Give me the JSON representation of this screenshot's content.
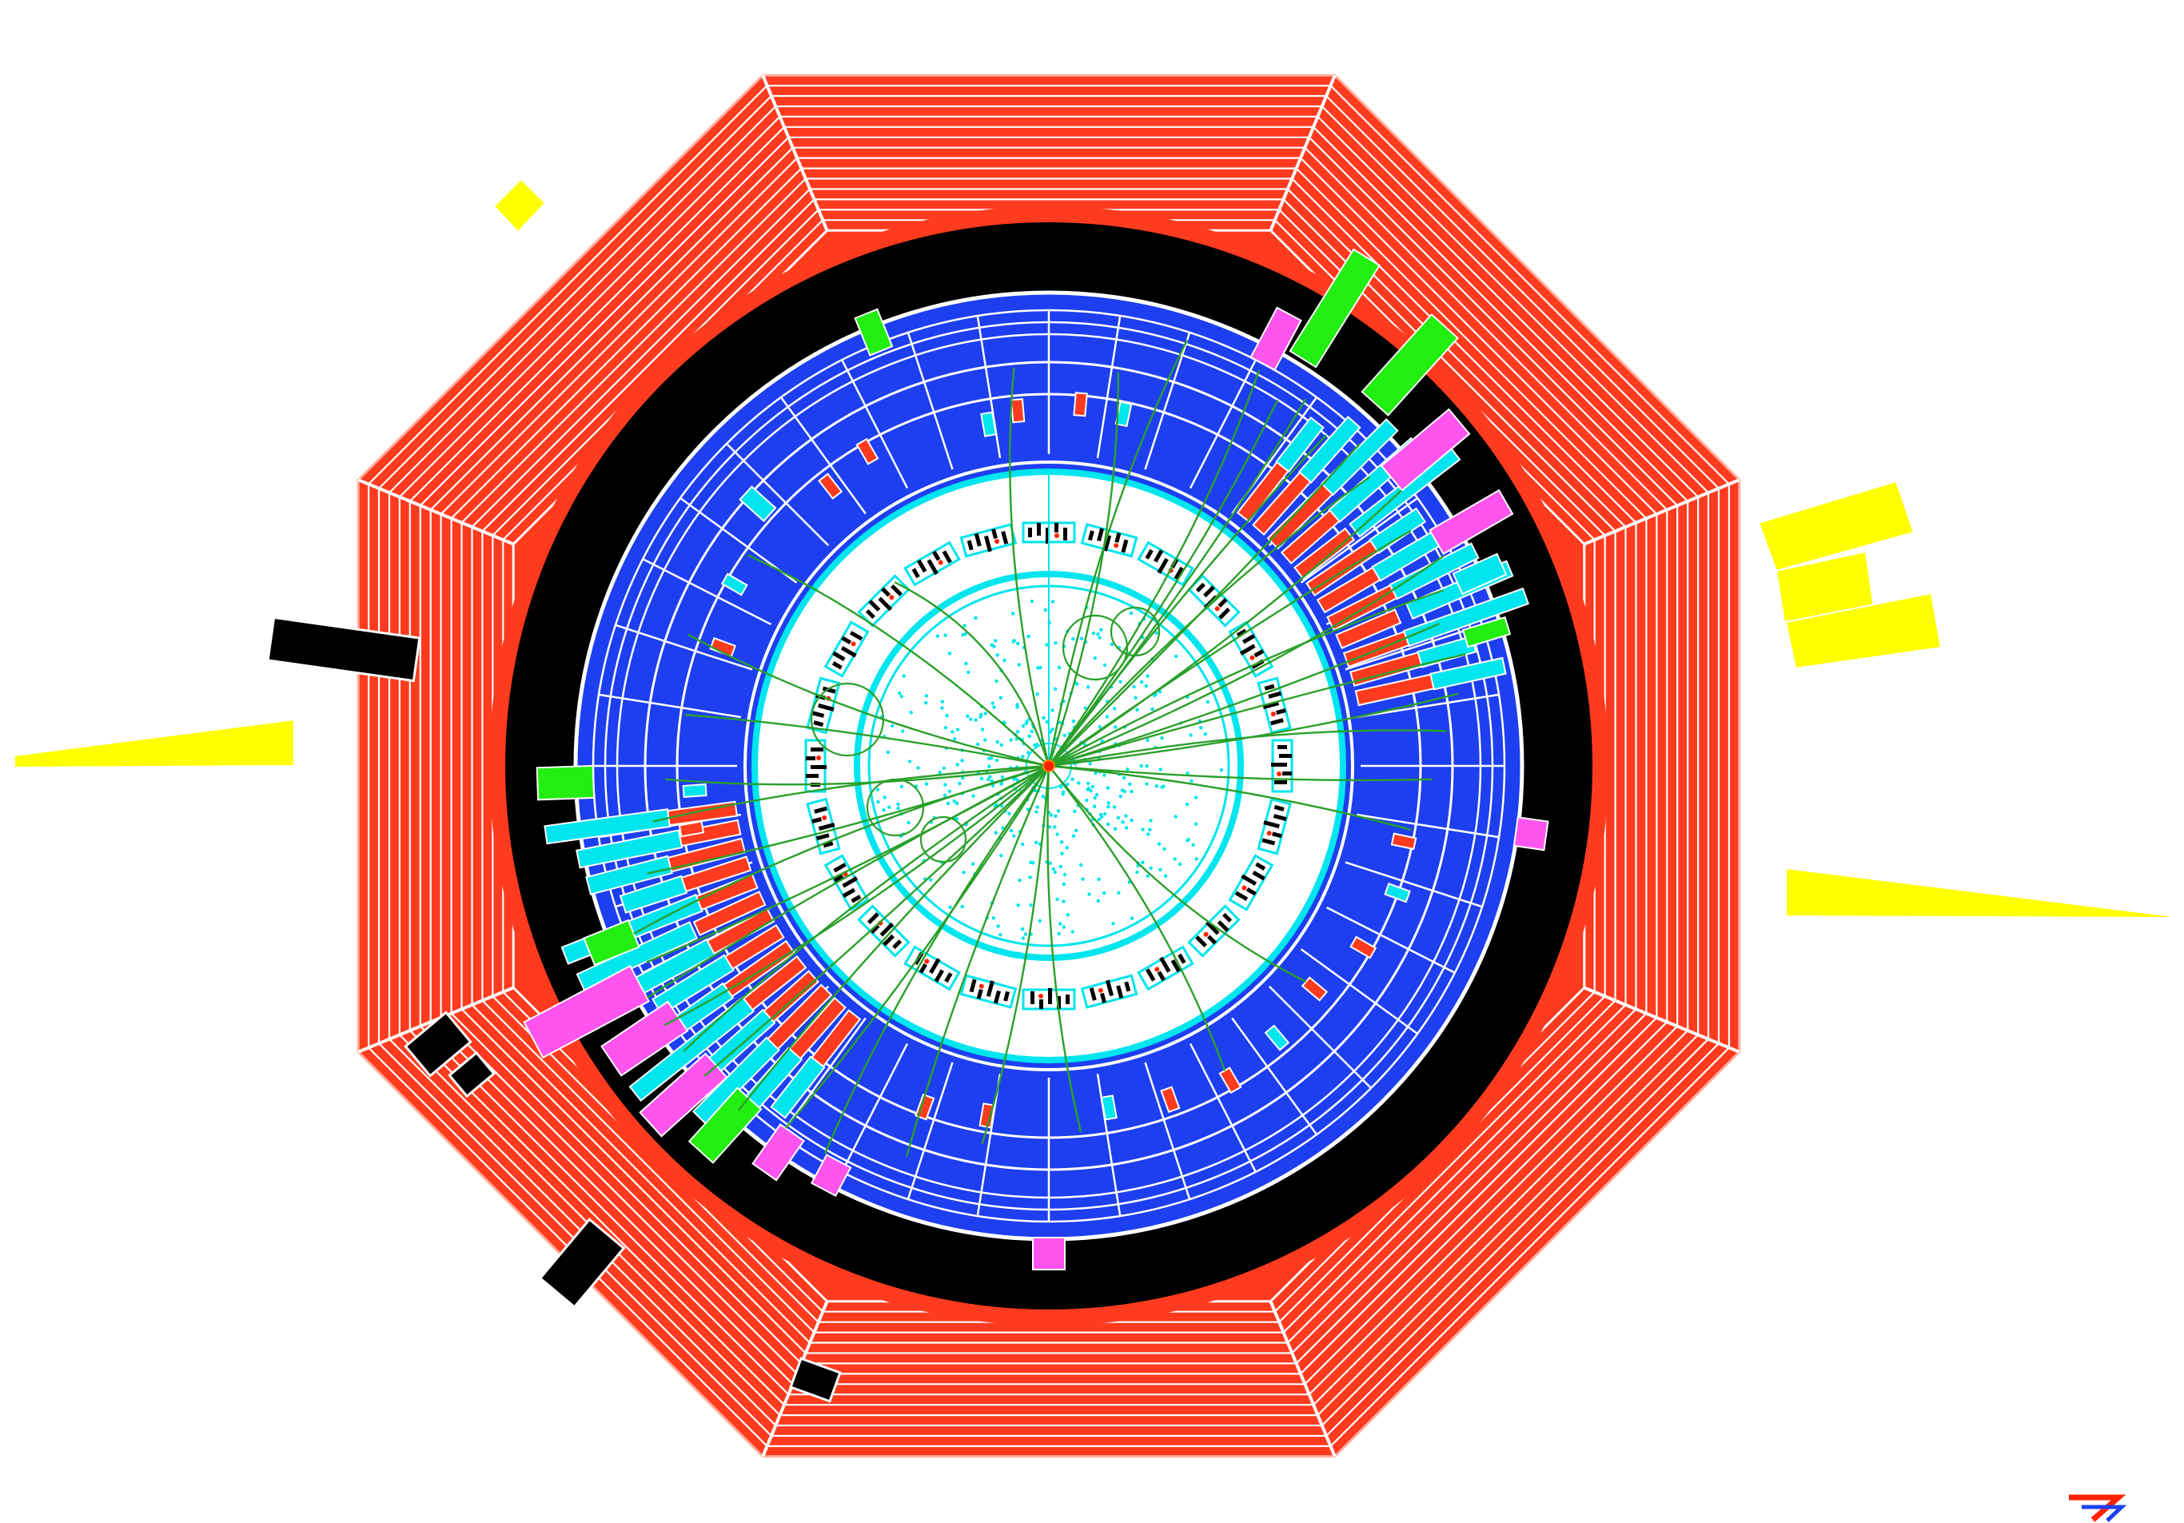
{
  "colors": {
    "background": "#ffffff",
    "muon_chamber": "#ff3b1f",
    "muon_chamber_lines": "#ffffff",
    "solenoid_gap": "#ff3b1f",
    "coil": "#000000",
    "hadron_calorimeter": "#1e3ff0",
    "calorimeter_grid": "#ffffff",
    "em_deposit": "#00e5ee",
    "had_deposit": "#ff3b1f",
    "jet_tower_green": "#22ee11",
    "jet_tower_magenta": "#ff55ee",
    "muon_hit": "#000000",
    "missing_energy": "#ffff00",
    "track": "#2aa02a",
    "vertex_detector": "#00e5ee",
    "vertex": "#ff2200"
  },
  "detector": {
    "muon_octagon_layers": 14,
    "hcal_phi_segments": 40,
    "tracker_pads": 24
  },
  "logo": {
    "icon": "experiment-logo-icon"
  }
}
